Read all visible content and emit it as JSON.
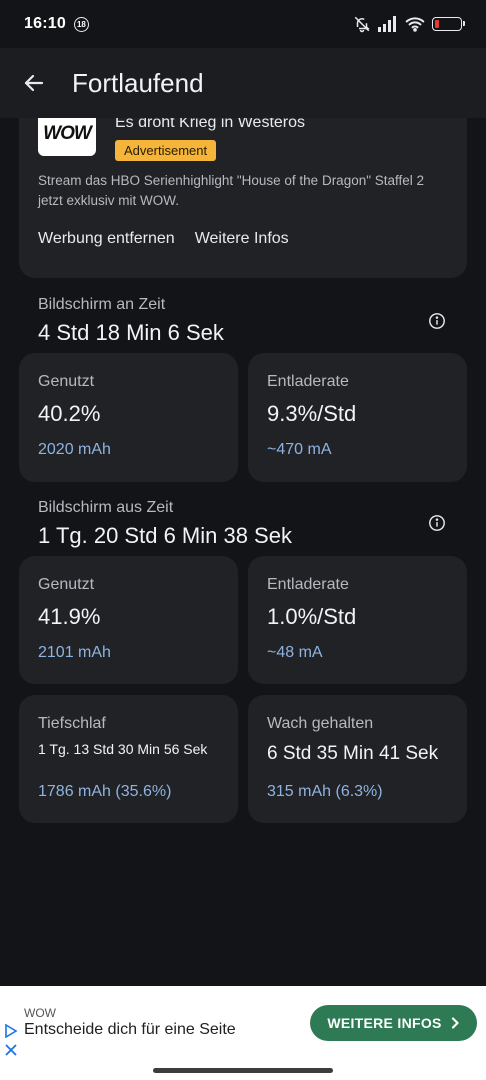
{
  "status_bar": {
    "time": "16:10",
    "badge": "18",
    "battery_level": 0.15,
    "icons": [
      "bell-muted-icon",
      "signal-icon",
      "wifi-icon",
      "battery-icon"
    ]
  },
  "app_bar": {
    "title": "Fortlaufend",
    "back_icon": "arrow-left-icon"
  },
  "ad": {
    "logo": "WOW",
    "title": "Es droht Krieg in Westeros",
    "badge": "Advertisement",
    "body": "Stream das HBO Serienhighlight \"House of the Dragon\" Staffel 2 jetzt exklusiv mit WOW.",
    "remove_label": "Werbung entfernen",
    "more_label": "Weitere Infos"
  },
  "screen_on": {
    "label": "Bildschirm an Zeit",
    "value": "4 Std 18 Min 6 Sek",
    "used": {
      "label": "Genutzt",
      "value": "40.2%",
      "sub": "2020 mAh"
    },
    "rate": {
      "label": "Entladerate",
      "value": "9.3%/Std",
      "sub": "~470 mA"
    }
  },
  "screen_off": {
    "label": "Bildschirm aus Zeit",
    "value": "1 Tg. 20 Std 6 Min 38 Sek",
    "used": {
      "label": "Genutzt",
      "value": "41.9%",
      "sub": "2101 mAh"
    },
    "rate": {
      "label": "Entladerate",
      "value": "1.0%/Std",
      "sub": "~48 mA"
    },
    "deep_sleep": {
      "label": "Tiefschlaf",
      "value": "1 Tg. 13 Std 30 Min 56 Sek",
      "sub": "1786 mAh (35.6%)"
    },
    "awake": {
      "label": "Wach gehalten",
      "value": "6 Std 35 Min 41 Sek",
      "sub": "315 mAh (6.3%)"
    }
  },
  "banner": {
    "brand": "WOW",
    "text": "Entscheide dich für eine Seite",
    "button_label": "WEITERE INFOS"
  },
  "colors": {
    "accent_blue": "#8fb3e0",
    "ad_badge": "#f5b43a",
    "cta_green": "#2e7a54",
    "battery_low": "#e53935"
  }
}
